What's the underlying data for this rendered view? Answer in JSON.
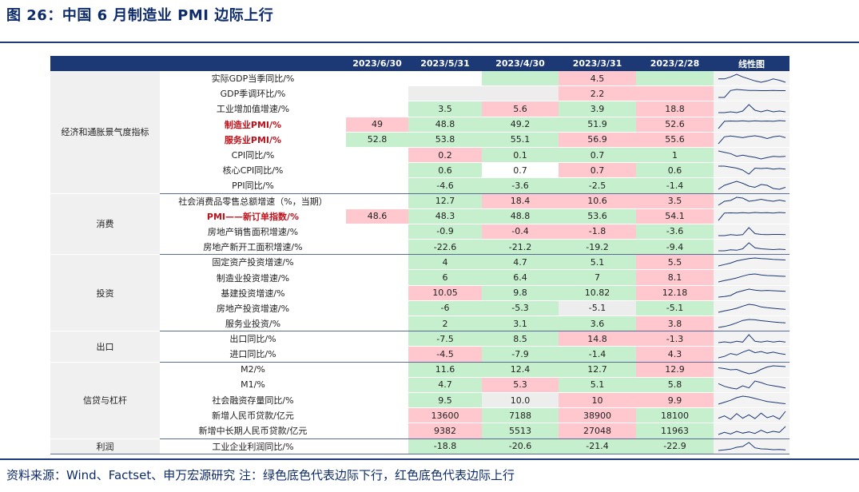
{
  "title": "图 26：中国 6 月制造业 PMI 边际上行",
  "source": "资料来源：Wind、Factset、申万宏源研究  注：绿色底色代表边际下行，红色底色代表边际上行",
  "headers": [
    "",
    "",
    "2023/6/30",
    "2023/5/31",
    "2023/4/30",
    "2023/3/31",
    "2023/2/28",
    "线性图"
  ],
  "colors": {
    "green": "#c6efce",
    "red": "#ffc7ce",
    "header": "#1c3875",
    "highlight_text": "#c0101a"
  },
  "groups": [
    {
      "name": "经济和通胀景气度指标",
      "rows": [
        {
          "label": "实际GDP当季同比/%",
          "hl": false,
          "cells": [
            [
              "",
              "n"
            ],
            [
              "",
              "n"
            ],
            [
              "",
              "g"
            ],
            [
              "4.5",
              "r"
            ],
            [
              "",
              "g"
            ]
          ],
          "spark": [
            4.5,
            4.5,
            4.8,
            5.2,
            4.8,
            4.5,
            4.2,
            4.0,
            4.2,
            4.5,
            4.3,
            4.0
          ]
        },
        {
          "label": "GDP季调环比/%",
          "hl": false,
          "cells": [
            [
              "",
              "n"
            ],
            [
              "",
              "y"
            ],
            [
              "",
              "y"
            ],
            [
              "2.2",
              "r"
            ],
            [
              "",
              "r"
            ]
          ],
          "spark": [
            1,
            1,
            8,
            9,
            8.5,
            8,
            8,
            7.8,
            7.8,
            8,
            7.8,
            7.8
          ]
        },
        {
          "label": "工业增加值增速/%",
          "hl": false,
          "cells": [
            [
              "",
              "n"
            ],
            [
              "3.5",
              "g"
            ],
            [
              "5.6",
              "r"
            ],
            [
              "3.9",
              "g"
            ],
            [
              "18.8",
              "r"
            ]
          ],
          "spark": [
            3,
            3,
            3.2,
            3,
            3.4,
            5,
            3.6,
            3.2,
            3.6,
            3.2,
            3.4,
            3.2
          ]
        },
        {
          "label": "制造业PMI/%",
          "hl": true,
          "cells": [
            [
              "49",
              "r"
            ],
            [
              "48.8",
              "g"
            ],
            [
              "49.2",
              "g"
            ],
            [
              "51.9",
              "g"
            ],
            [
              "52.6",
              "r"
            ]
          ],
          "spark": [
            2,
            6,
            6.2,
            6.1,
            6.3,
            6.0,
            6.3,
            6.1,
            6.2,
            6.0,
            6.4,
            6.2
          ]
        },
        {
          "label": "服务业PMI/%",
          "hl": true,
          "cells": [
            [
              "52.8",
              "g"
            ],
            [
              "53.8",
              "g"
            ],
            [
              "55.1",
              "g"
            ],
            [
              "56.9",
              "r"
            ],
            [
              "55.6",
              "r"
            ]
          ],
          "spark": [
            2,
            6,
            6.5,
            6,
            5.5,
            6.2,
            6.6,
            6,
            5,
            6,
            6.5,
            5.5
          ]
        },
        {
          "label": "CPI同比/%",
          "hl": false,
          "cells": [
            [
              "",
              "n"
            ],
            [
              "0.2",
              "r"
            ],
            [
              "0.1",
              "g"
            ],
            [
              "0.7",
              "g"
            ],
            [
              "1",
              "g"
            ]
          ],
          "spark": [
            7,
            6.5,
            6,
            5,
            5.4,
            5,
            4.6,
            4,
            4.5,
            5,
            4.8,
            5
          ]
        },
        {
          "label": "核心CPI同比/%",
          "hl": false,
          "cells": [
            [
              "",
              "n"
            ],
            [
              "0.6",
              "g"
            ],
            [
              "0.7",
              "n"
            ],
            [
              "0.7",
              "r"
            ],
            [
              "0.6",
              "g"
            ]
          ],
          "spark": [
            6,
            6,
            5.5,
            5,
            4,
            2,
            5,
            4.8,
            5,
            4.5,
            4.8,
            4.5
          ]
        },
        {
          "label": "PPI同比/%",
          "hl": false,
          "cells": [
            [
              "",
              "n"
            ],
            [
              "-4.6",
              "g"
            ],
            [
              "-3.6",
              "g"
            ],
            [
              "-2.5",
              "g"
            ],
            [
              "-1.4",
              "g"
            ]
          ],
          "spark": [
            4,
            5,
            5.5,
            6,
            5.5,
            4.8,
            4.5,
            5.2,
            5,
            4.2,
            4,
            4.5
          ]
        }
      ]
    },
    {
      "name": "消费",
      "rows": [
        {
          "label": "社会消费品零售总额增速（%，当期）",
          "hl": false,
          "cells": [
            [
              "",
              "n"
            ],
            [
              "12.7",
              "g"
            ],
            [
              "18.4",
              "r"
            ],
            [
              "10.6",
              "r"
            ],
            [
              "3.5",
              "r"
            ]
          ],
          "spark": [
            4,
            5,
            5.2,
            6,
            5.8,
            5,
            5.2,
            5.5,
            5.2,
            5,
            5.3,
            5
          ]
        },
        {
          "label": "PMI——新订单指数/%",
          "hl": true,
          "cells": [
            [
              "48.6",
              "r"
            ],
            [
              "48.3",
              "g"
            ],
            [
              "48.8",
              "g"
            ],
            [
              "53.6",
              "g"
            ],
            [
              "54.1",
              "r"
            ]
          ],
          "spark": [
            2,
            6,
            6.1,
            6,
            6.2,
            6,
            6.3,
            6.1,
            6.2,
            6,
            6.3,
            6.1
          ]
        },
        {
          "label": "房地产销售面积增速/%",
          "hl": false,
          "cells": [
            [
              "",
              "n"
            ],
            [
              "-0.9",
              "g"
            ],
            [
              "-0.4",
              "r"
            ],
            [
              "-1.8",
              "r"
            ],
            [
              "-3.6",
              "g"
            ]
          ],
          "spark": [
            3,
            3,
            3.5,
            3.2,
            3.5,
            7,
            4,
            3.6,
            3.5,
            3.6,
            3.6,
            3.5
          ]
        },
        {
          "label": "房地产新开工面积增速/%",
          "hl": false,
          "cells": [
            [
              "",
              "n"
            ],
            [
              "-22.6",
              "g"
            ],
            [
              "-21.2",
              "g"
            ],
            [
              "-19.2",
              "g"
            ],
            [
              "-9.4",
              "g"
            ]
          ],
          "spark": [
            3,
            3,
            3.5,
            3.3,
            4,
            7,
            4.5,
            4,
            3.8,
            3.6,
            3.8,
            3.6
          ]
        }
      ]
    },
    {
      "name": "投资",
      "rows": [
        {
          "label": "固定资产投资增速/%",
          "hl": false,
          "cells": [
            [
              "",
              "n"
            ],
            [
              "4",
              "g"
            ],
            [
              "4.7",
              "g"
            ],
            [
              "5.1",
              "g"
            ],
            [
              "5.5",
              "r"
            ]
          ],
          "spark": [
            4,
            4.5,
            5,
            5.8,
            6.2,
            6.6,
            6.8,
            6.6,
            6.5,
            6.3,
            6.2,
            6.1
          ]
        },
        {
          "label": "制造业投资增速/%",
          "hl": false,
          "cells": [
            [
              "",
              "n"
            ],
            [
              "6",
              "g"
            ],
            [
              "6.4",
              "g"
            ],
            [
              "7",
              "g"
            ],
            [
              "8.1",
              "r"
            ]
          ],
          "spark": [
            4,
            4.5,
            5,
            5.5,
            6.2,
            6.8,
            7,
            6.6,
            6.4,
            6.3,
            6.2,
            6.1
          ]
        },
        {
          "label": "基建投资增速/%",
          "hl": false,
          "cells": [
            [
              "",
              "n"
            ],
            [
              "10.05",
              "r"
            ],
            [
              "9.8",
              "g"
            ],
            [
              "10.82",
              "g"
            ],
            [
              "12.18",
              "r"
            ]
          ],
          "spark": [
            4,
            4.2,
            4.5,
            5.5,
            6,
            6.5,
            6.2,
            6,
            6.1,
            6,
            5.9,
            5.8
          ]
        },
        {
          "label": "房地产投资增速/%",
          "hl": false,
          "cells": [
            [
              "",
              "n"
            ],
            [
              "-6",
              "g"
            ],
            [
              "-5.3",
              "g"
            ],
            [
              "-5.1",
              "y"
            ],
            [
              "-5.1",
              "g"
            ]
          ],
          "spark": [
            3.5,
            4,
            4.5,
            5,
            5.8,
            6.5,
            6.2,
            5.5,
            5.2,
            5,
            4.8,
            4.6
          ]
        },
        {
          "label": "服务业投资/%",
          "hl": false,
          "cells": [
            [
              "",
              "n"
            ],
            [
              "2",
              "g"
            ],
            [
              "3.1",
              "g"
            ],
            [
              "3.6",
              "g"
            ],
            [
              "3.8",
              "r"
            ]
          ],
          "spark": [
            4,
            4.3,
            4.8,
            5.5,
            6.3,
            6.6,
            6.5,
            6.2,
            6,
            5.8,
            5.6,
            5.5
          ]
        }
      ]
    },
    {
      "name": "出口",
      "rows": [
        {
          "label": "出口同比/%",
          "hl": false,
          "cells": [
            [
              "",
              "n"
            ],
            [
              "-7.5",
              "g"
            ],
            [
              "8.5",
              "g"
            ],
            [
              "14.8",
              "r"
            ],
            [
              "-1.3",
              "r"
            ]
          ],
          "spark": [
            4,
            4.3,
            4,
            4.5,
            4.2,
            7,
            4.5,
            4.2,
            4.6,
            4.2,
            4.5,
            4.2
          ]
        },
        {
          "label": "进口同比/%",
          "hl": false,
          "cells": [
            [
              "",
              "n"
            ],
            [
              "-4.5",
              "r"
            ],
            [
              "-7.9",
              "g"
            ],
            [
              "-1.4",
              "g"
            ],
            [
              "4.3",
              "r"
            ]
          ],
          "spark": [
            3,
            3.5,
            4.5,
            4,
            5,
            5.8,
            4.8,
            5.2,
            4.6,
            5,
            4.5,
            4.2
          ]
        }
      ]
    },
    {
      "name": "信贷与杠杆",
      "rows": [
        {
          "label": "M2/%",
          "hl": false,
          "cells": [
            [
              "",
              "n"
            ],
            [
              "11.6",
              "g"
            ],
            [
              "12.4",
              "g"
            ],
            [
              "12.7",
              "g"
            ],
            [
              "12.9",
              "r"
            ]
          ],
          "spark": [
            6,
            5.8,
            5.5,
            5.6,
            5,
            4.5,
            4.8,
            5.6,
            6.2,
            6.5,
            6.4,
            6.3
          ]
        },
        {
          "label": "M1/%",
          "hl": false,
          "cells": [
            [
              "",
              "n"
            ],
            [
              "4.7",
              "g"
            ],
            [
              "5.3",
              "r"
            ],
            [
              "5.1",
              "g"
            ],
            [
              "5.8",
              "g"
            ]
          ],
          "spark": [
            6,
            5.5,
            5.2,
            5,
            5.6,
            5.2,
            6.5,
            6.2,
            5.8,
            5.6,
            5.4,
            5.2
          ]
        },
        {
          "label": "社会融资存量同比/%",
          "hl": false,
          "cells": [
            [
              "",
              "n"
            ],
            [
              "9.5",
              "g"
            ],
            [
              "10.0",
              "y"
            ],
            [
              "10",
              "r"
            ],
            [
              "9.9",
              "r"
            ]
          ],
          "spark": [
            4.5,
            5,
            5.5,
            6.2,
            6.6,
            6.4,
            6,
            5.6,
            5.2,
            5,
            4.8,
            4.6
          ]
        },
        {
          "label": "新增人民币贷款/亿元",
          "hl": false,
          "cells": [
            [
              "",
              "n"
            ],
            [
              "13600",
              "r"
            ],
            [
              "7188",
              "g"
            ],
            [
              "38900",
              "r"
            ],
            [
              "18100",
              "g"
            ]
          ],
          "spark": [
            4,
            5,
            3.5,
            6,
            4,
            5.5,
            3.8,
            6.2,
            4.2,
            5,
            3.6,
            7
          ]
        },
        {
          "label": "新增中长期人民币贷款/亿元",
          "hl": false,
          "cells": [
            [
              "",
              "n"
            ],
            [
              "9382",
              "r"
            ],
            [
              "5513",
              "g"
            ],
            [
              "27048",
              "r"
            ],
            [
              "11963",
              "g"
            ]
          ],
          "spark": [
            4,
            4.8,
            4.2,
            5.2,
            4.5,
            5,
            4.4,
            5.6,
            4.6,
            5.2,
            4.8,
            7
          ]
        }
      ]
    },
    {
      "name": "利润",
      "rows": [
        {
          "label": "工业企业利润同比/%",
          "hl": false,
          "cells": [
            [
              "",
              "n"
            ],
            [
              "-18.8",
              "g"
            ],
            [
              "-20.6",
              "g"
            ],
            [
              "-21.4",
              "g"
            ],
            [
              "-22.9",
              "g"
            ]
          ],
          "spark": [
            4,
            4.2,
            4.5,
            5.2,
            5.5,
            7,
            5,
            4.6,
            4.5,
            4.3,
            4.4,
            4.2
          ]
        }
      ]
    }
  ]
}
